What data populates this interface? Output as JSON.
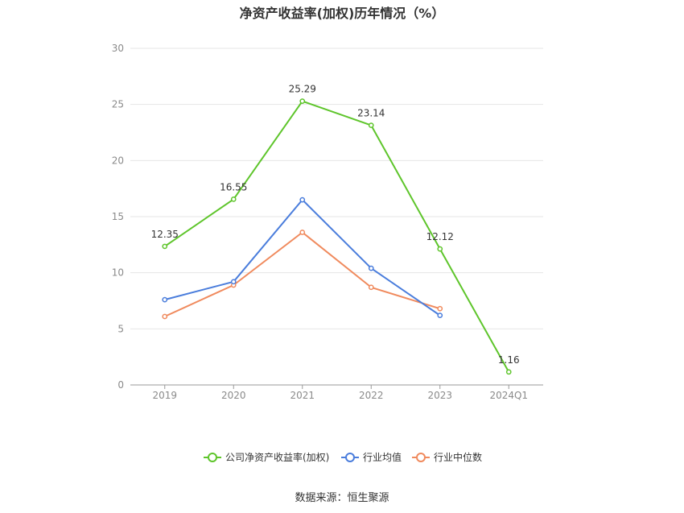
{
  "chart_data": {
    "type": "line",
    "title": "净资产收益率(加权)历年情况（%）",
    "categories": [
      "2019",
      "2020",
      "2021",
      "2022",
      "2023",
      "2024Q1"
    ],
    "ylim": [
      0,
      30
    ],
    "yticks": [
      0,
      5,
      10,
      15,
      20,
      25,
      30
    ],
    "grid": true,
    "legend_position": "bottom",
    "series": [
      {
        "name": "公司净资产收益率(加权)",
        "color": "#5ec52b",
        "values": [
          12.35,
          16.55,
          25.29,
          23.14,
          12.12,
          1.16
        ],
        "labels": [
          "12.35",
          "16.55",
          "25.29",
          "23.14",
          "12.12",
          "1.16"
        ]
      },
      {
        "name": "行业均值",
        "color": "#4a7ddc",
        "values": [
          7.6,
          9.2,
          16.5,
          10.4,
          6.2,
          null
        ]
      },
      {
        "name": "行业中位数",
        "color": "#f08a5d",
        "values": [
          6.1,
          8.9,
          13.6,
          8.7,
          6.8,
          null
        ]
      }
    ]
  },
  "source": "数据来源：恒生聚源"
}
